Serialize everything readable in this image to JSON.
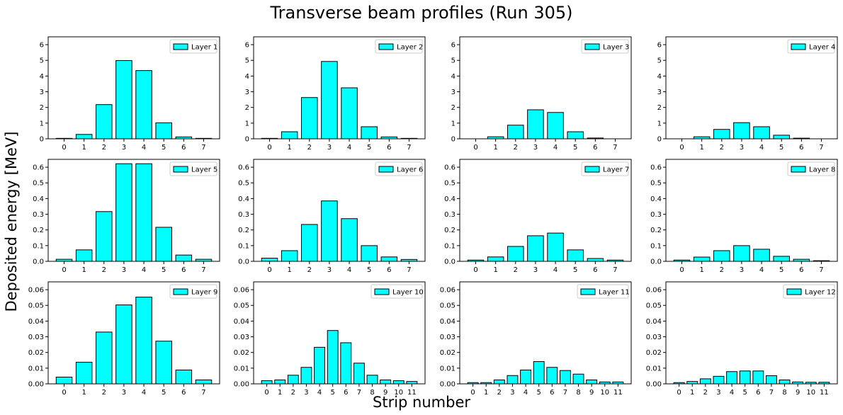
{
  "title": "Transverse beam profiles (Run 305)",
  "xlabel": "Strip number",
  "ylabel": "Deposited energy [MeV]",
  "colors": {
    "bar_fill": "#00ffff",
    "bar_edge": "#000000",
    "axis": "#000000"
  },
  "chart_data": [
    {
      "type": "bar",
      "legend": "Layer 1",
      "categories": [
        "0",
        "1",
        "2",
        "3",
        "4",
        "5",
        "6",
        "7"
      ],
      "values": [
        0.03,
        0.28,
        2.18,
        4.99,
        4.35,
        1.02,
        0.12,
        0.03
      ],
      "ylim": [
        0,
        6.5
      ],
      "yticks": [
        0,
        1,
        2,
        3,
        4,
        5,
        6
      ],
      "ytick_labels": [
        "0",
        "1",
        "2",
        "3",
        "4",
        "5",
        "6"
      ]
    },
    {
      "type": "bar",
      "legend": "Layer 2",
      "categories": [
        "0",
        "1",
        "2",
        "3",
        "4",
        "5",
        "6",
        "7"
      ],
      "values": [
        0.03,
        0.45,
        2.63,
        4.93,
        3.25,
        0.77,
        0.12,
        0.03
      ],
      "ylim": [
        0,
        6.5
      ],
      "yticks": [
        0,
        1,
        2,
        3,
        4,
        5,
        6
      ],
      "ytick_labels": [
        "0",
        "1",
        "2",
        "3",
        "4",
        "5",
        "6"
      ]
    },
    {
      "type": "bar",
      "legend": "Layer 3",
      "categories": [
        "0",
        "1",
        "2",
        "3",
        "4",
        "5",
        "6",
        "7"
      ],
      "values": [
        0.0,
        0.13,
        0.87,
        1.85,
        1.68,
        0.45,
        0.05,
        0.0
      ],
      "ylim": [
        0,
        6.5
      ],
      "yticks": [
        0,
        1,
        2,
        3,
        4,
        5,
        6
      ],
      "ytick_labels": [
        "0",
        "1",
        "2",
        "3",
        "4",
        "5",
        "6"
      ]
    },
    {
      "type": "bar",
      "legend": "Layer 4",
      "categories": [
        "0",
        "1",
        "2",
        "3",
        "4",
        "5",
        "6",
        "7"
      ],
      "values": [
        0.0,
        0.13,
        0.6,
        1.03,
        0.77,
        0.23,
        0.04,
        0.0
      ],
      "ylim": [
        0,
        6.5
      ],
      "yticks": [
        0,
        1,
        2,
        3,
        4,
        5,
        6
      ],
      "ytick_labels": [
        "0",
        "1",
        "2",
        "3",
        "4",
        "5",
        "6"
      ]
    },
    {
      "type": "bar",
      "legend": "Layer 5",
      "categories": [
        "0",
        "1",
        "2",
        "3",
        "4",
        "5",
        "6",
        "7"
      ],
      "values": [
        0.013,
        0.073,
        0.317,
        0.622,
        0.622,
        0.217,
        0.04,
        0.013
      ],
      "ylim": [
        0,
        0.65
      ],
      "yticks": [
        0,
        0.1,
        0.2,
        0.3,
        0.4,
        0.5,
        0.6
      ],
      "ytick_labels": [
        "0.0",
        "0.1",
        "0.2",
        "0.3",
        "0.4",
        "0.5",
        "0.6"
      ]
    },
    {
      "type": "bar",
      "legend": "Layer 6",
      "categories": [
        "0",
        "1",
        "2",
        "3",
        "4",
        "5",
        "6",
        "7"
      ],
      "values": [
        0.02,
        0.068,
        0.235,
        0.385,
        0.272,
        0.1,
        0.028,
        0.012
      ],
      "ylim": [
        0,
        0.65
      ],
      "yticks": [
        0,
        0.1,
        0.2,
        0.3,
        0.4,
        0.5,
        0.6
      ],
      "ytick_labels": [
        "0.0",
        "0.1",
        "0.2",
        "0.3",
        "0.4",
        "0.5",
        "0.6"
      ]
    },
    {
      "type": "bar",
      "legend": "Layer 7",
      "categories": [
        "0",
        "1",
        "2",
        "3",
        "4",
        "5",
        "6",
        "7"
      ],
      "values": [
        0.008,
        0.028,
        0.095,
        0.163,
        0.18,
        0.073,
        0.018,
        0.008
      ],
      "ylim": [
        0,
        0.65
      ],
      "yticks": [
        0,
        0.1,
        0.2,
        0.3,
        0.4,
        0.5,
        0.6
      ],
      "ytick_labels": [
        "0.0",
        "0.1",
        "0.2",
        "0.3",
        "0.4",
        "0.5",
        "0.6"
      ]
    },
    {
      "type": "bar",
      "legend": "Layer 8",
      "categories": [
        "0",
        "1",
        "2",
        "3",
        "4",
        "5",
        "6",
        "7"
      ],
      "values": [
        0.008,
        0.027,
        0.068,
        0.1,
        0.077,
        0.032,
        0.013,
        0.004
      ],
      "ylim": [
        0,
        0.65
      ],
      "yticks": [
        0,
        0.1,
        0.2,
        0.3,
        0.4,
        0.5,
        0.6
      ],
      "ytick_labels": [
        "0.0",
        "0.1",
        "0.2",
        "0.3",
        "0.4",
        "0.5",
        "0.6"
      ]
    },
    {
      "type": "bar",
      "legend": "Layer 9",
      "categories": [
        "0",
        "1",
        "2",
        "3",
        "4",
        "5",
        "6",
        "7"
      ],
      "values": [
        0.0043,
        0.0138,
        0.033,
        0.0503,
        0.0553,
        0.0272,
        0.0088,
        0.0025
      ],
      "ylim": [
        0,
        0.065
      ],
      "yticks": [
        0,
        0.01,
        0.02,
        0.03,
        0.04,
        0.05,
        0.06
      ],
      "ytick_labels": [
        "0.00",
        "0.01",
        "0.02",
        "0.03",
        "0.04",
        "0.05",
        "0.06"
      ]
    },
    {
      "type": "bar",
      "legend": "Layer 10",
      "categories": [
        "0",
        "1",
        "2",
        "3",
        "4",
        "5",
        "6",
        "7",
        "8",
        "9",
        "10",
        "11"
      ],
      "values": [
        0.002,
        0.0025,
        0.0055,
        0.0105,
        0.0233,
        0.034,
        0.0262,
        0.0132,
        0.0055,
        0.0025,
        0.002,
        0.0015
      ],
      "ylim": [
        0,
        0.065
      ],
      "yticks": [
        0,
        0.01,
        0.02,
        0.03,
        0.04,
        0.05,
        0.06
      ],
      "ytick_labels": [
        "0.00",
        "0.01",
        "0.02",
        "0.03",
        "0.04",
        "0.05",
        "0.06"
      ]
    },
    {
      "type": "bar",
      "legend": "Layer 11",
      "categories": [
        "0",
        "1",
        "2",
        "3",
        "4",
        "5",
        "6",
        "7",
        "8",
        "9",
        "10",
        "11"
      ],
      "values": [
        0.0008,
        0.0008,
        0.0025,
        0.0053,
        0.0088,
        0.0142,
        0.0105,
        0.0085,
        0.0062,
        0.0025,
        0.0012,
        0.0012
      ],
      "ylim": [
        0,
        0.065
      ],
      "yticks": [
        0,
        0.01,
        0.02,
        0.03,
        0.04,
        0.05,
        0.06
      ],
      "ytick_labels": [
        "0.00",
        "0.01",
        "0.02",
        "0.03",
        "0.04",
        "0.05",
        "0.06"
      ]
    },
    {
      "type": "bar",
      "legend": "Layer 12",
      "categories": [
        "0",
        "1",
        "2",
        "3",
        "4",
        "5",
        "6",
        "7",
        "8",
        "9",
        "10",
        "11"
      ],
      "values": [
        0.0008,
        0.0015,
        0.0032,
        0.0048,
        0.0078,
        0.0082,
        0.0082,
        0.0052,
        0.0025,
        0.0012,
        0.001,
        0.001
      ],
      "ylim": [
        0,
        0.065
      ],
      "yticks": [
        0,
        0.01,
        0.02,
        0.03,
        0.04,
        0.05,
        0.06
      ],
      "ytick_labels": [
        "0.00",
        "0.01",
        "0.02",
        "0.03",
        "0.04",
        "0.05",
        "0.06"
      ]
    }
  ]
}
